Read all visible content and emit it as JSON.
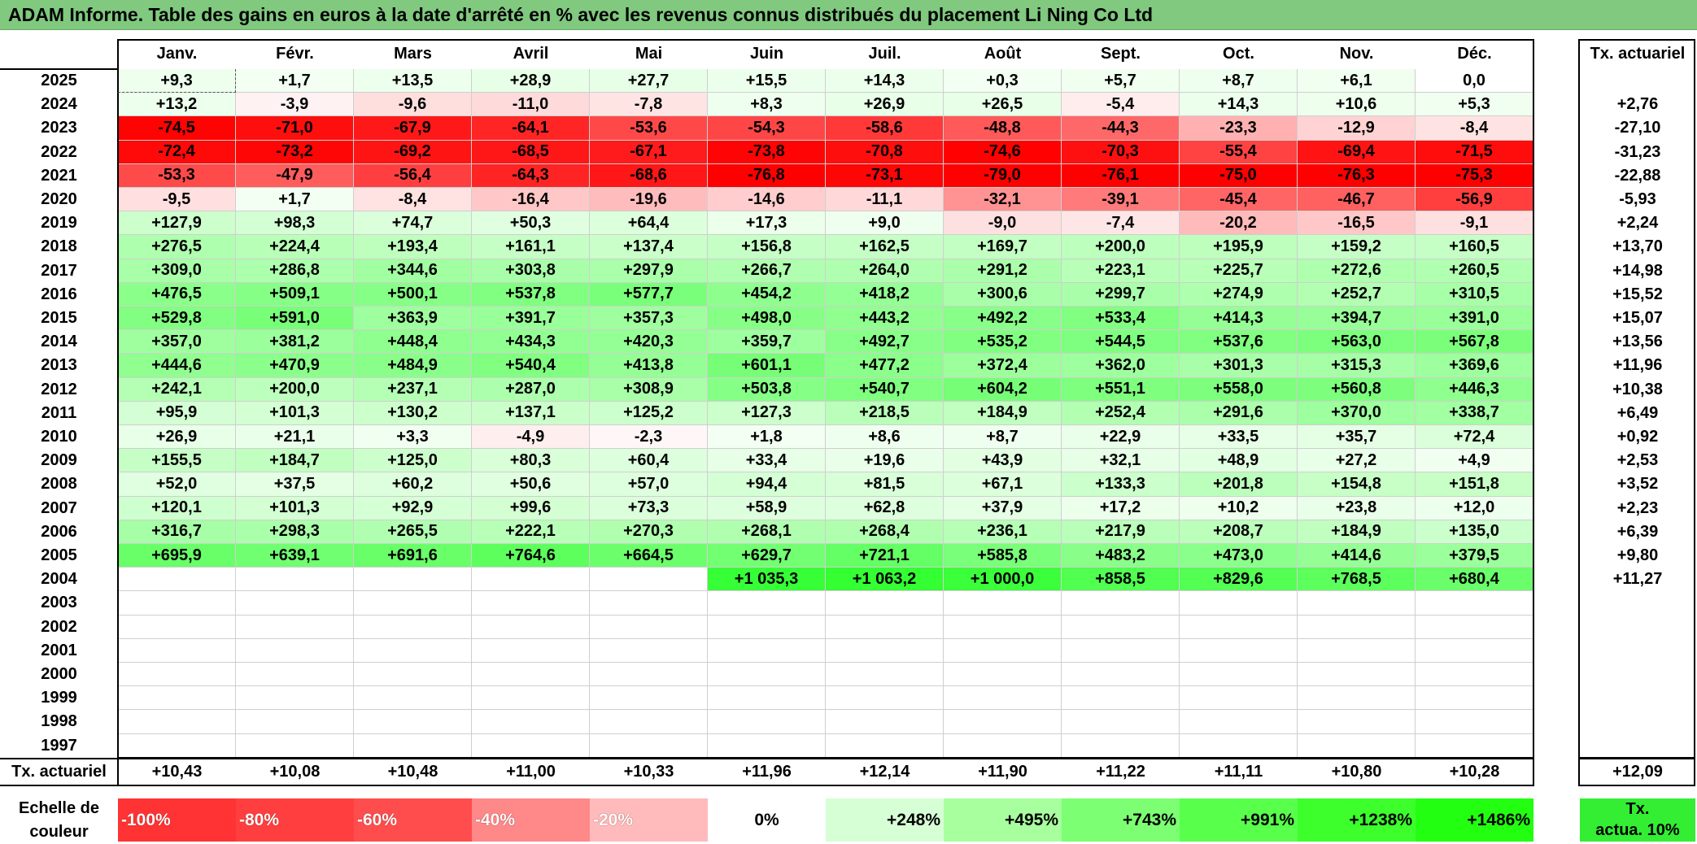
{
  "title": "ADAM Informe. Table des gains en euros à la date d'arrêté en % avec les revenus connus distribués du placement Li Ning Co Ltd",
  "months": [
    "Janv.",
    "Févr.",
    "Mars",
    "Avril",
    "Mai",
    "Juin",
    "Juil.",
    "Août",
    "Sept.",
    "Oct.",
    "Nov.",
    "Déc."
  ],
  "tx_header": "Tx. actuariel",
  "rows": [
    {
      "year": "2025",
      "values": [
        "+9,3",
        "+1,7",
        "+13,5",
        "+28,9",
        "+27,7",
        "+15,5",
        "+14,3",
        "+0,3",
        "+5,7",
        "+8,7",
        "+6,1",
        "0,0"
      ],
      "tx": ""
    },
    {
      "year": "2024",
      "values": [
        "+13,2",
        "-3,9",
        "-9,6",
        "-11,0",
        "-7,8",
        "+8,3",
        "+26,9",
        "+26,5",
        "-5,4",
        "+14,3",
        "+10,6",
        "+5,3"
      ],
      "tx": "+2,76"
    },
    {
      "year": "2023",
      "values": [
        "-74,5",
        "-71,0",
        "-67,9",
        "-64,1",
        "-53,6",
        "-54,3",
        "-58,6",
        "-48,8",
        "-44,3",
        "-23,3",
        "-12,9",
        "-8,4"
      ],
      "tx": "-27,10"
    },
    {
      "year": "2022",
      "values": [
        "-72,4",
        "-73,2",
        "-69,2",
        "-68,5",
        "-67,1",
        "-73,8",
        "-70,8",
        "-74,6",
        "-70,3",
        "-55,4",
        "-69,4",
        "-71,5"
      ],
      "tx": "-31,23"
    },
    {
      "year": "2021",
      "values": [
        "-53,3",
        "-47,9",
        "-56,4",
        "-64,3",
        "-68,6",
        "-76,8",
        "-73,1",
        "-79,0",
        "-76,1",
        "-75,0",
        "-76,3",
        "-75,3"
      ],
      "tx": "-22,88"
    },
    {
      "year": "2020",
      "values": [
        "-9,5",
        "+1,7",
        "-8,4",
        "-16,4",
        "-19,6",
        "-14,6",
        "-11,1",
        "-32,1",
        "-39,1",
        "-45,4",
        "-46,7",
        "-56,9"
      ],
      "tx": "-5,93"
    },
    {
      "year": "2019",
      "values": [
        "+127,9",
        "+98,3",
        "+74,7",
        "+50,3",
        "+64,4",
        "+17,3",
        "+9,0",
        "-9,0",
        "-7,4",
        "-20,2",
        "-16,5",
        "-9,1"
      ],
      "tx": "+2,24"
    },
    {
      "year": "2018",
      "values": [
        "+276,5",
        "+224,4",
        "+193,4",
        "+161,1",
        "+137,4",
        "+156,8",
        "+162,5",
        "+169,7",
        "+200,0",
        "+195,9",
        "+159,2",
        "+160,5"
      ],
      "tx": "+13,70"
    },
    {
      "year": "2017",
      "values": [
        "+309,0",
        "+286,8",
        "+344,6",
        "+303,8",
        "+297,9",
        "+266,7",
        "+264,0",
        "+291,2",
        "+223,1",
        "+225,7",
        "+272,6",
        "+260,5"
      ],
      "tx": "+14,98"
    },
    {
      "year": "2016",
      "values": [
        "+476,5",
        "+509,1",
        "+500,1",
        "+537,8",
        "+577,7",
        "+454,2",
        "+418,2",
        "+300,6",
        "+299,7",
        "+274,9",
        "+252,7",
        "+310,5"
      ],
      "tx": "+15,52"
    },
    {
      "year": "2015",
      "values": [
        "+529,8",
        "+591,0",
        "+363,9",
        "+391,7",
        "+357,3",
        "+498,0",
        "+443,2",
        "+492,2",
        "+533,4",
        "+414,3",
        "+394,7",
        "+391,0"
      ],
      "tx": "+15,07"
    },
    {
      "year": "2014",
      "values": [
        "+357,0",
        "+381,2",
        "+448,4",
        "+434,3",
        "+420,3",
        "+359,7",
        "+492,7",
        "+535,2",
        "+544,5",
        "+537,6",
        "+563,0",
        "+567,8"
      ],
      "tx": "+13,56"
    },
    {
      "year": "2013",
      "values": [
        "+444,6",
        "+470,9",
        "+484,9",
        "+540,4",
        "+413,8",
        "+601,1",
        "+477,2",
        "+372,4",
        "+362,0",
        "+301,3",
        "+315,3",
        "+369,6"
      ],
      "tx": "+11,96"
    },
    {
      "year": "2012",
      "values": [
        "+242,1",
        "+200,0",
        "+237,1",
        "+287,0",
        "+308,9",
        "+503,8",
        "+540,7",
        "+604,2",
        "+551,1",
        "+558,0",
        "+560,8",
        "+446,3"
      ],
      "tx": "+10,38"
    },
    {
      "year": "2011",
      "values": [
        "+95,9",
        "+101,3",
        "+130,2",
        "+137,1",
        "+125,2",
        "+127,3",
        "+218,5",
        "+184,9",
        "+252,4",
        "+291,6",
        "+370,0",
        "+338,7"
      ],
      "tx": "+6,49"
    },
    {
      "year": "2010",
      "values": [
        "+26,9",
        "+21,1",
        "+3,3",
        "-4,9",
        "-2,3",
        "+1,8",
        "+8,6",
        "+8,7",
        "+22,9",
        "+33,5",
        "+35,7",
        "+72,4"
      ],
      "tx": "+0,92"
    },
    {
      "year": "2009",
      "values": [
        "+155,5",
        "+184,7",
        "+125,0",
        "+80,3",
        "+60,4",
        "+33,4",
        "+19,6",
        "+43,9",
        "+32,1",
        "+48,9",
        "+27,2",
        "+4,9"
      ],
      "tx": "+2,53"
    },
    {
      "year": "2008",
      "values": [
        "+52,0",
        "+37,5",
        "+60,2",
        "+50,6",
        "+57,0",
        "+94,4",
        "+81,5",
        "+67,1",
        "+133,3",
        "+201,8",
        "+154,8",
        "+151,8"
      ],
      "tx": "+3,52"
    },
    {
      "year": "2007",
      "values": [
        "+120,1",
        "+101,3",
        "+92,9",
        "+99,6",
        "+73,3",
        "+58,9",
        "+62,8",
        "+37,9",
        "+17,2",
        "+10,2",
        "+23,8",
        "+12,0"
      ],
      "tx": "+2,23"
    },
    {
      "year": "2006",
      "values": [
        "+316,7",
        "+298,3",
        "+265,5",
        "+222,1",
        "+270,3",
        "+268,1",
        "+268,4",
        "+236,1",
        "+217,9",
        "+208,7",
        "+184,9",
        "+135,0"
      ],
      "tx": "+6,39"
    },
    {
      "year": "2005",
      "values": [
        "+695,9",
        "+639,1",
        "+691,6",
        "+764,6",
        "+664,5",
        "+629,7",
        "+721,1",
        "+585,8",
        "+483,2",
        "+473,0",
        "+414,6",
        "+379,5"
      ],
      "tx": "+9,80"
    },
    {
      "year": "2004",
      "values": [
        "",
        "",
        "",
        "",
        "",
        "+1 035,3",
        "+1 063,2",
        "+1 000,0",
        "+858,5",
        "+829,6",
        "+768,5",
        "+680,4"
      ],
      "tx": "+11,27"
    },
    {
      "year": "2003",
      "values": [
        "",
        "",
        "",
        "",
        "",
        "",
        "",
        "",
        "",
        "",
        "",
        ""
      ],
      "tx": ""
    },
    {
      "year": "2002",
      "values": [
        "",
        "",
        "",
        "",
        "",
        "",
        "",
        "",
        "",
        "",
        "",
        ""
      ],
      "tx": ""
    },
    {
      "year": "2001",
      "values": [
        "",
        "",
        "",
        "",
        "",
        "",
        "",
        "",
        "",
        "",
        "",
        ""
      ],
      "tx": ""
    },
    {
      "year": "2000",
      "values": [
        "",
        "",
        "",
        "",
        "",
        "",
        "",
        "",
        "",
        "",
        "",
        ""
      ],
      "tx": ""
    },
    {
      "year": "1999",
      "values": [
        "",
        "",
        "",
        "",
        "",
        "",
        "",
        "",
        "",
        "",
        "",
        ""
      ],
      "tx": ""
    },
    {
      "year": "1998",
      "values": [
        "",
        "",
        "",
        "",
        "",
        "",
        "",
        "",
        "",
        "",
        "",
        ""
      ],
      "tx": ""
    },
    {
      "year": "1997",
      "values": [
        "",
        "",
        "",
        "",
        "",
        "",
        "",
        "",
        "",
        "",
        "",
        ""
      ],
      "tx": ""
    }
  ],
  "footer": {
    "label": "Tx. actuariel",
    "values": [
      "+10,43",
      "+10,08",
      "+10,48",
      "+11,00",
      "+10,33",
      "+11,96",
      "+12,14",
      "+11,90",
      "+11,22",
      "+11,11",
      "+10,80",
      "+10,28"
    ],
    "total": "+12,09"
  },
  "legend": {
    "label_line1": "Echelle de",
    "label_line2": "couleur",
    "steps": [
      "-100%",
      "-80%",
      "-60%",
      "-40%",
      "-20%",
      "0%",
      "+248%",
      "+495%",
      "+743%",
      "+991%",
      "+1238%",
      "+1486%"
    ],
    "tx_line1": "Tx.",
    "tx_line2": "actua. 10%",
    "tx_color": "#33ee33"
  },
  "colors": {
    "title_bg": "#80c97f",
    "negative_max": "#ff0000",
    "positive_max": "#33ff33",
    "neutral": "#ffffff"
  }
}
